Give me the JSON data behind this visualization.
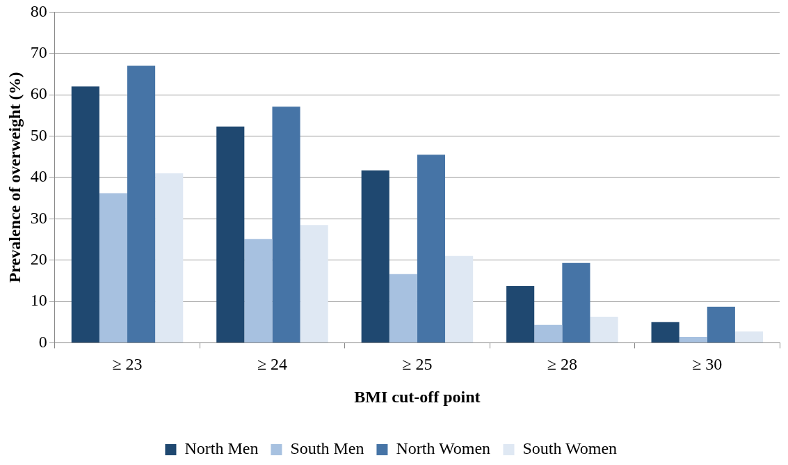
{
  "chart_data": {
    "type": "bar",
    "xlabel": "BMI cut-off point",
    "ylabel": "Prevalence of overweight (%)",
    "categories": [
      "≥ 23",
      "≥ 24",
      "≥ 25",
      "≥ 28",
      "≥ 30"
    ],
    "series": [
      {
        "name": "North Men",
        "color": "#1f4870",
        "values": [
          62.0,
          52.3,
          41.7,
          13.7,
          5.0
        ]
      },
      {
        "name": "South Men",
        "color": "#a7c1e0",
        "values": [
          36.2,
          25.1,
          16.6,
          4.3,
          1.4
        ]
      },
      {
        "name": "North Women",
        "color": "#4674a6",
        "values": [
          67.0,
          57.1,
          45.5,
          19.3,
          8.7
        ]
      },
      {
        "name": "South Women",
        "color": "#dfe8f3",
        "values": [
          41.0,
          28.5,
          21.0,
          6.3,
          2.7
        ]
      }
    ],
    "ylim": [
      0,
      80
    ],
    "yticks": [
      0,
      10,
      20,
      30,
      40,
      50,
      60,
      70,
      80
    ],
    "grid": "y",
    "legend": "bottom"
  }
}
